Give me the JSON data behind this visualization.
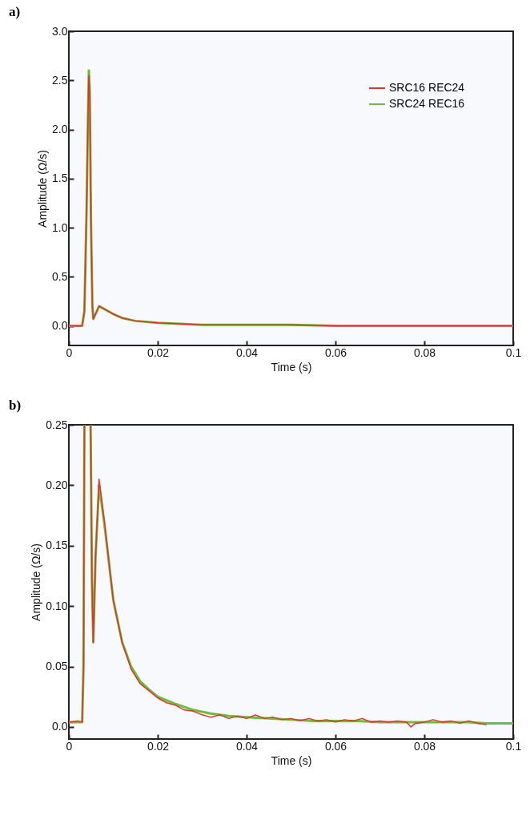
{
  "chart_data": [
    {
      "type": "line",
      "title": "a)",
      "xlabel": "Time (s)",
      "ylabel": "Amplitude (Ω/s)",
      "legend": "top right",
      "xlim": [
        0,
        0.1
      ],
      "xticks": [
        0,
        0.02,
        0.04,
        0.06,
        0.08,
        0.1
      ],
      "ylim": [
        -0.2,
        3.0
      ],
      "yticks": [
        {
          "value": 0,
          "label": "0.0"
        },
        0.5,
        {
          "value": 1,
          "label": "1.0"
        },
        1.5,
        {
          "value": 2,
          "label": "2.0"
        },
        2.5,
        {
          "value": 3,
          "label": "3.0"
        }
      ],
      "series": [
        {
          "name": "SRC16 REC24",
          "color": "#e8302a",
          "x": [
            0,
            0.003,
            0.0035,
            0.004,
            0.0043,
            0.0045,
            0.0047,
            0.005,
            0.0053,
            0.0055,
            0.006,
            0.0068,
            0.008,
            0.01,
            0.012,
            0.015,
            0.02,
            0.025,
            0.03,
            0.04,
            0.05,
            0.06,
            0.07,
            0.08,
            0.09,
            0.1
          ],
          "values": [
            0,
            0,
            0.15,
            1.2,
            2.1,
            2.55,
            2.35,
            1.0,
            0.2,
            0.07,
            0.12,
            0.2,
            0.17,
            0.12,
            0.08,
            0.05,
            0.03,
            0.02,
            0.01,
            0.01,
            0.01,
            0,
            0,
            0,
            0,
            0
          ]
        },
        {
          "name": "SRC24 REC16",
          "color": "#6abf3a",
          "x": [
            0,
            0.003,
            0.0035,
            0.004,
            0.0043,
            0.0045,
            0.0047,
            0.005,
            0.0053,
            0.0055,
            0.006,
            0.0068,
            0.008,
            0.01,
            0.012,
            0.015,
            0.02,
            0.025,
            0.03,
            0.04,
            0.05,
            0.06,
            0.07,
            0.08,
            0.09,
            0.1
          ],
          "values": [
            0,
            0,
            0.15,
            1.2,
            2.1,
            2.6,
            2.4,
            1.0,
            0.2,
            0.07,
            0.12,
            0.2,
            0.17,
            0.12,
            0.08,
            0.05,
            0.03,
            0.02,
            0.01,
            0.01,
            0.01,
            0,
            0,
            0,
            0,
            0
          ]
        }
      ]
    },
    {
      "type": "line",
      "title": "b)",
      "xlabel": "Time (s)",
      "ylabel": "Amplitude (Ω/s)",
      "legend": "top right",
      "xlim": [
        0,
        0.1
      ],
      "xticks": [
        0,
        0.02,
        0.04,
        0.06,
        0.08,
        0.1
      ],
      "ylim": [
        -0.01,
        0.25
      ],
      "yticks": [
        {
          "value": 0,
          "label": "0.0"
        },
        0.05,
        {
          "value": 0.1,
          "label": "0.10"
        },
        0.15,
        {
          "value": 0.2,
          "label": "0.20"
        },
        0.25
      ],
      "series": [
        {
          "name": "SRC16 REC24",
          "color": "#e8302a",
          "x": [
            0,
            0.002,
            0.003,
            0.0033,
            0.0035,
            0.004,
            0.0049,
            0.0052,
            0.0055,
            0.006,
            0.0068,
            0.008,
            0.01,
            0.012,
            0.014,
            0.016,
            0.018,
            0.02,
            0.022,
            0.024,
            0.026,
            0.028,
            0.03,
            0.032,
            0.034,
            0.036,
            0.038,
            0.04,
            0.042,
            0.044,
            0.046,
            0.048,
            0.05,
            0.052,
            0.054,
            0.056,
            0.058,
            0.06,
            0.062,
            0.064,
            0.066,
            0.068,
            0.07,
            0.072,
            0.074,
            0.076,
            0.077,
            0.078,
            0.08,
            0.082,
            0.084,
            0.086,
            0.088,
            0.09,
            0.092,
            0.094
          ],
          "values": [
            0.004,
            0.005,
            0.004,
            0.05,
            0.25,
            null,
            0.25,
            0.12,
            0.07,
            0.14,
            0.205,
            0.17,
            0.105,
            0.07,
            0.048,
            0.036,
            0.03,
            0.024,
            0.02,
            0.018,
            0.014,
            0.013,
            0.01,
            0.008,
            0.01,
            0.007,
            0.009,
            0.007,
            0.01,
            0.007,
            0.008,
            0.006,
            0.007,
            0.005,
            0.007,
            0.005,
            0.006,
            0.004,
            0.006,
            0.005,
            0.007,
            0.004,
            0.005,
            0.004,
            0.005,
            0.004,
            0.0,
            0.003,
            0.004,
            0.006,
            0.004,
            0.005,
            0.003,
            0.005,
            0.003,
            0.002
          ]
        },
        {
          "name": "SRC24 REC16",
          "color": "#6abf3a",
          "x": [
            0,
            0.002,
            0.003,
            0.0033,
            0.0035,
            0.004,
            0.0049,
            0.0052,
            0.0055,
            0.006,
            0.0068,
            0.008,
            0.01,
            0.012,
            0.014,
            0.016,
            0.018,
            0.02,
            0.024,
            0.028,
            0.032,
            0.036,
            0.04,
            0.045,
            0.05,
            0.055,
            0.06,
            0.065,
            0.07,
            0.075,
            0.08,
            0.085,
            0.09,
            0.094,
            0.1
          ],
          "values": [
            0.004,
            0.004,
            0.004,
            0.05,
            0.25,
            null,
            0.25,
            0.12,
            0.07,
            0.14,
            0.2,
            0.168,
            0.105,
            0.07,
            0.05,
            0.038,
            0.031,
            0.025,
            0.019,
            0.014,
            0.011,
            0.009,
            0.008,
            0.007,
            0.006,
            0.005,
            0.005,
            0.005,
            0.004,
            0.004,
            0.004,
            0.004,
            0.004,
            0.003,
            0.003
          ]
        }
      ]
    }
  ]
}
